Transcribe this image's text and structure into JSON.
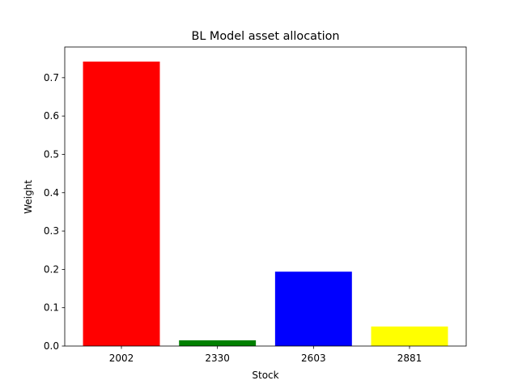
{
  "chart_data": {
    "type": "bar",
    "title": "BL Model asset allocation",
    "xlabel": "Stock",
    "ylabel": "Weight",
    "categories": [
      "2002",
      "2330",
      "2603",
      "2881"
    ],
    "values": [
      0.742,
      0.015,
      0.194,
      0.051
    ],
    "colors": [
      "#ff0000",
      "#008000",
      "#0000ff",
      "#ffff00"
    ],
    "ylim": [
      0,
      0.78
    ],
    "yticks": [
      0.0,
      0.1,
      0.2,
      0.3,
      0.4,
      0.5,
      0.6,
      0.7
    ],
    "grid": false,
    "legend": "none"
  }
}
